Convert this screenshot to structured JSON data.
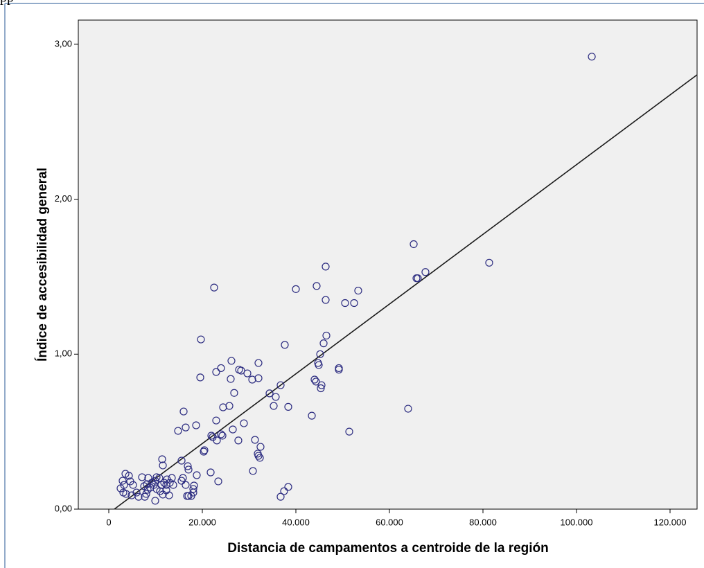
{
  "fragment": "pp",
  "chart_data": {
    "type": "scatter",
    "x_label": "Distancia de campamentos a centroide de la región",
    "y_label": "Índice de accesibilidad general",
    "xlim": [
      -6519,
      125778
    ],
    "ylim": [
      0,
      3.156
    ],
    "xticks": [
      0,
      {
        "value": 20000,
        "label": "20.000"
      },
      {
        "value": 40000,
        "label": "40.000"
      },
      {
        "value": 60000,
        "label": "60.000"
      },
      {
        "value": 80000,
        "label": "80.000"
      },
      {
        "value": 100000,
        "label": "100.000"
      },
      {
        "value": 120000,
        "label": "120.000"
      }
    ],
    "yticks": [
      {
        "value": 0,
        "label": "0,00"
      },
      {
        "value": 1,
        "label": "1,00"
      },
      {
        "value": 2,
        "label": "2,00"
      },
      {
        "value": 3,
        "label": "3,00"
      }
    ],
    "color": "#2b2b80",
    "line_color": "#1a1a1a",
    "plot_background": "#f0f0f0",
    "x": [
      103270,
      65190,
      46370,
      81330,
      67700,
      65780,
      66070,
      22520,
      40000,
      44440,
      53330,
      46370,
      50520,
      52450,
      19700,
      37630,
      46520,
      45930,
      45190,
      26220,
      32000,
      44740,
      44890,
      49190,
      49190,
      24000,
      22960,
      27850,
      28300,
      29630,
      19560,
      32000,
      30670,
      26070,
      44000,
      44300,
      36740,
      45480,
      45330,
      26810,
      34370,
      35700,
      24440,
      25780,
      35260,
      38370,
      16000,
      64000,
      28890,
      18670,
      16440,
      26520,
      14810,
      43410,
      22960,
      51410,
      24000,
      24300,
      21930,
      22220,
      23110,
      27700,
      31260,
      32440,
      31850,
      32000,
      32300,
      20300,
      20440,
      11410,
      15560,
      11560,
      16890,
      17040,
      30820,
      21780,
      23410,
      3560,
      4300,
      7110,
      8440,
      10810,
      12440,
      13480,
      18810,
      15850,
      15560,
      9930,
      9190,
      13780,
      16440,
      18220,
      18070,
      18070,
      17630,
      17040,
      16740,
      2960,
      3260,
      2520,
      4590,
      5190,
      3110,
      3700,
      5930,
      4890,
      8000,
      7700,
      6370,
      9930,
      10960,
      12300,
      11560,
      12890,
      10220,
      8890,
      8300,
      9630,
      11260,
      11850,
      10220,
      8150,
      7560,
      38370,
      37480,
      36740,
      12300,
      13040
    ],
    "values": [
      2.92,
      1.71,
      1.565,
      1.59,
      1.53,
      1.49,
      1.49,
      1.43,
      1.42,
      1.44,
      1.41,
      1.35,
      1.33,
      1.33,
      1.095,
      1.06,
      1.12,
      1.07,
      1.0,
      0.957,
      0.943,
      0.943,
      0.93,
      0.91,
      0.9,
      0.91,
      0.885,
      0.9,
      0.894,
      0.876,
      0.85,
      0.845,
      0.836,
      0.84,
      0.836,
      0.823,
      0.8,
      0.8,
      0.78,
      0.75,
      0.747,
      0.724,
      0.657,
      0.666,
      0.666,
      0.66,
      0.63,
      0.648,
      0.554,
      0.541,
      0.527,
      0.514,
      0.505,
      0.603,
      0.572,
      0.5,
      0.483,
      0.474,
      0.474,
      0.465,
      0.443,
      0.443,
      0.447,
      0.402,
      0.358,
      0.344,
      0.331,
      0.371,
      0.38,
      0.322,
      0.313,
      0.282,
      0.277,
      0.255,
      0.246,
      0.237,
      0.179,
      0.228,
      0.215,
      0.206,
      0.201,
      0.201,
      0.192,
      0.201,
      0.219,
      0.201,
      0.183,
      0.183,
      0.17,
      0.156,
      0.156,
      0.152,
      0.13,
      0.107,
      0.085,
      0.085,
      0.085,
      0.183,
      0.156,
      0.134,
      0.179,
      0.156,
      0.107,
      0.098,
      0.107,
      0.089,
      0.098,
      0.08,
      0.08,
      0.054,
      0.116,
      0.121,
      0.094,
      0.089,
      0.13,
      0.139,
      0.125,
      0.156,
      0.156,
      0.17,
      0.206,
      0.161,
      0.148,
      0.143,
      0.116,
      0.08,
      0.156,
      0.17
    ],
    "fit_line": {
      "x": [
        1185,
        125778
      ],
      "y": [
        0,
        2.803
      ]
    }
  }
}
